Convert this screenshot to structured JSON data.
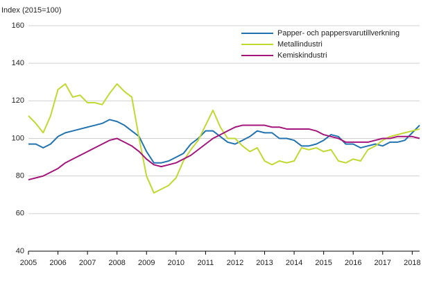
{
  "chart_data": {
    "type": "line",
    "y_label": "Index (2015=100)",
    "x": [
      2005,
      2005.25,
      2005.5,
      2005.75,
      2006,
      2006.25,
      2006.5,
      2006.75,
      2007,
      2007.25,
      2007.5,
      2007.75,
      2008,
      2008.25,
      2008.5,
      2008.75,
      2009,
      2009.25,
      2009.5,
      2009.75,
      2010,
      2010.25,
      2010.5,
      2010.75,
      2011,
      2011.25,
      2011.5,
      2011.75,
      2012,
      2012.25,
      2012.5,
      2012.75,
      2013,
      2013.25,
      2013.5,
      2013.75,
      2014,
      2014.25,
      2014.5,
      2014.75,
      2015,
      2015.25,
      2015.5,
      2015.75,
      2016,
      2016.25,
      2016.5,
      2016.75,
      2017,
      2017.25,
      2017.5,
      2017.75,
      2018,
      2018.25
    ],
    "series": [
      {
        "name": "Papper- och pappersvarutillverkning",
        "color": "#2073b0",
        "values": [
          97,
          97,
          95,
          97,
          101,
          103,
          104,
          105,
          106,
          107,
          108,
          110,
          109,
          107,
          104,
          101,
          93,
          87,
          87,
          88,
          90,
          92,
          97,
          100,
          104,
          104,
          101,
          98,
          97,
          99,
          101,
          104,
          103,
          103,
          100,
          100,
          99,
          96,
          96,
          97,
          99,
          102,
          101,
          97,
          97,
          95,
          96,
          97,
          96,
          98,
          98,
          99,
          103,
          107
        ]
      },
      {
        "name": "Metallindustri",
        "color": "#c1d82f",
        "values": [
          112,
          108,
          103,
          112,
          126,
          129,
          122,
          123,
          119,
          119,
          118,
          124,
          129,
          125,
          122,
          100,
          80,
          71,
          73,
          75,
          79,
          88,
          94,
          99,
          107,
          115,
          106,
          100,
          100,
          96,
          93,
          95,
          88,
          86,
          88,
          87,
          88,
          95,
          94,
          95,
          93,
          94,
          88,
          87,
          89,
          88,
          94,
          96,
          99,
          101,
          102,
          103,
          104,
          105
        ]
      },
      {
        "name": "Kemiskindustri",
        "color": "#a4157c",
        "values": [
          78,
          79,
          80,
          82,
          84,
          87,
          89,
          91,
          93,
          95,
          97,
          99,
          100,
          98,
          96,
          93,
          89,
          86,
          85,
          86,
          87,
          89,
          91,
          94,
          97,
          100,
          102,
          104,
          106,
          107,
          107,
          107,
          107,
          106,
          106,
          105,
          105,
          105,
          105,
          104,
          102,
          101,
          100,
          98,
          98,
          98,
          98,
          99,
          100,
          100,
          101,
          101,
          101,
          100
        ]
      }
    ],
    "xlim": [
      2005,
      2018.25
    ],
    "xticks": [
      2005,
      2006,
      2007,
      2008,
      2009,
      2010,
      2011,
      2012,
      2013,
      2014,
      2015,
      2016,
      2017,
      2018
    ],
    "ylim": [
      40,
      160
    ],
    "yticks": [
      40,
      60,
      80,
      100,
      120,
      140,
      160
    ],
    "grid": true
  }
}
